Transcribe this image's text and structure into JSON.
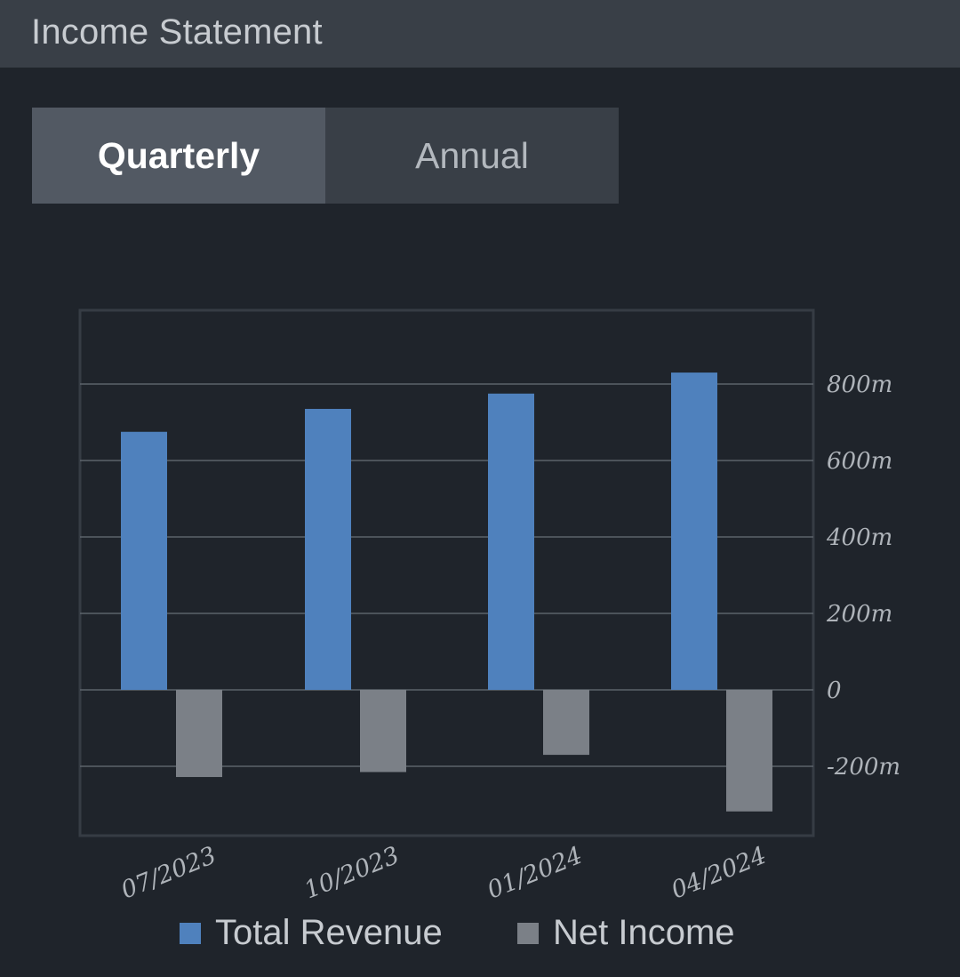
{
  "header": {
    "title": "Income Statement"
  },
  "toggle": {
    "quarterly_label": "Quarterly",
    "annual_label": "Annual",
    "selected": "Quarterly"
  },
  "colors": {
    "revenue": "#4f81bd",
    "net_income": "#7b8087",
    "grid": "#5c636b",
    "label": "#aeb3b9"
  },
  "chart_data": {
    "type": "bar",
    "categories": [
      "07/2023",
      "10/2023",
      "01/2024",
      "04/2024"
    ],
    "series": [
      {
        "name": "Total Revenue",
        "values": [
          675,
          735,
          775,
          830
        ]
      },
      {
        "name": "Net Income",
        "values": [
          -228,
          -215,
          -170,
          -318
        ]
      }
    ],
    "ylim": [
      -380,
      995
    ],
    "yticks": [
      -200,
      0,
      200,
      400,
      600,
      800
    ],
    "ytick_labels": [
      "-200m",
      "0",
      "200m",
      "400m",
      "600m",
      "800m"
    ],
    "axis_side": "right",
    "grid": true,
    "legend": "bottom"
  }
}
